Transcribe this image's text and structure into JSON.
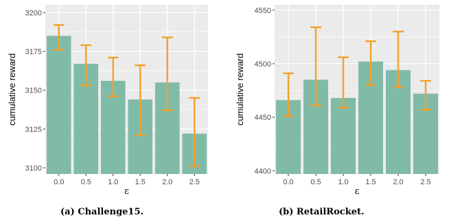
{
  "chart_data": [
    {
      "type": "bar",
      "caption": "(a) Challenge15.",
      "categories": [
        "0.0",
        "0.5",
        "1.0",
        "1.5",
        "2.0",
        "2.5"
      ],
      "values": [
        3185,
        3167,
        3156,
        3144,
        3155,
        3122
      ],
      "error_low": [
        3176,
        3153,
        3146,
        3121,
        3137,
        3101
      ],
      "error_high": [
        3192,
        3179,
        3171,
        3166,
        3184,
        3145
      ],
      "xlabel": "ε",
      "ylabel": "cumulative reward",
      "ylim": [
        3096,
        3205
      ],
      "yticks": [
        3100,
        3125,
        3150,
        3175,
        3200
      ],
      "grid": true,
      "colors": {
        "bar": "#80bba7",
        "error": "#f5a02b",
        "panel": "#ebebeb",
        "gridline": "#ffffff"
      }
    },
    {
      "type": "bar",
      "caption": "(b) RetailRocket.",
      "categories": [
        "0.0",
        "0.5",
        "1.0",
        "1.5",
        "2.0",
        "2.5"
      ],
      "values": [
        4466,
        4485,
        4468,
        4502,
        4494,
        4472
      ],
      "error_low": [
        4451,
        4461,
        4459,
        4480,
        4478,
        4457
      ],
      "error_high": [
        4491,
        4534,
        4506,
        4521,
        4530,
        4484
      ],
      "xlabel": "ε",
      "ylabel": "cumulative reward",
      "ylim": [
        4397,
        4555
      ],
      "yticks": [
        4400,
        4450,
        4500,
        4550
      ],
      "grid": true,
      "colors": {
        "bar": "#80bba7",
        "error": "#f5a02b",
        "panel": "#ebebeb",
        "gridline": "#ffffff"
      }
    }
  ]
}
